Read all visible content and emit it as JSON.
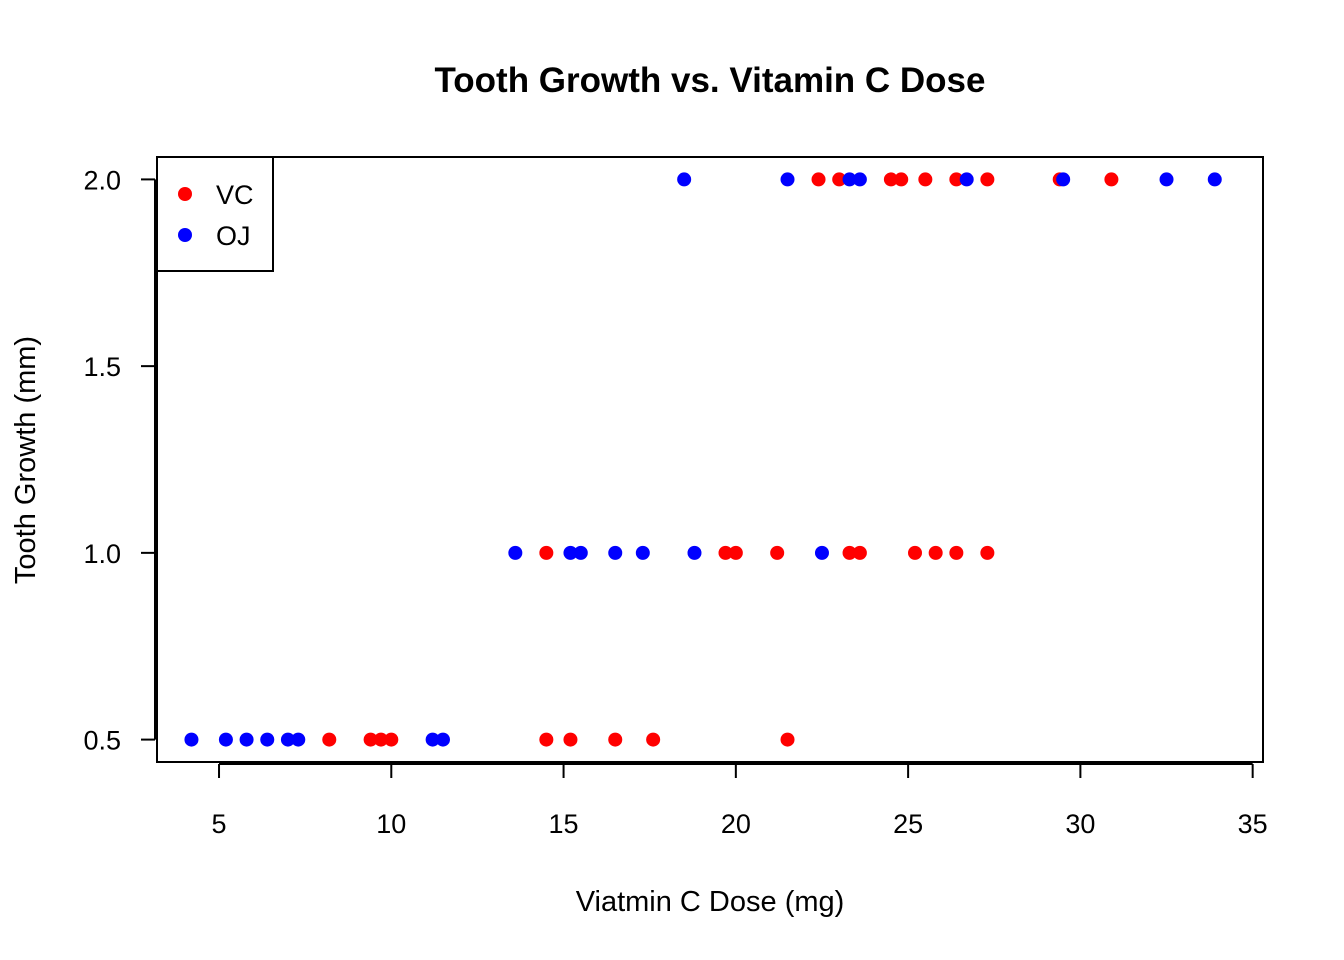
{
  "chart_data": {
    "type": "scatter",
    "title": "Tooth Growth vs. Vitamin C Dose",
    "xlabel": "Viatmin C Dose (mg)",
    "ylabel": "Tooth Growth (mm)",
    "xlim": [
      3.2,
      35.3
    ],
    "ylim": [
      0.44,
      2.06
    ],
    "xticks": [
      5,
      10,
      15,
      20,
      25,
      30,
      35
    ],
    "yticks": [
      0.5,
      1.0,
      1.5,
      2.0
    ],
    "ytick_labels": [
      "0.5",
      "1.0",
      "1.5",
      "2.0"
    ],
    "grid": false,
    "legend_position": "top-left",
    "series": [
      {
        "name": "VC",
        "color": "#ff0000",
        "points": [
          [
            8.2,
            0.5
          ],
          [
            9.4,
            0.5
          ],
          [
            9.7,
            0.5
          ],
          [
            10.0,
            0.5
          ],
          [
            14.5,
            0.5
          ],
          [
            15.2,
            0.5
          ],
          [
            16.5,
            0.5
          ],
          [
            17.6,
            0.5
          ],
          [
            21.5,
            0.5
          ],
          [
            14.5,
            1.0
          ],
          [
            19.7,
            1.0
          ],
          [
            20.0,
            1.0
          ],
          [
            21.2,
            1.0
          ],
          [
            23.3,
            1.0
          ],
          [
            23.6,
            1.0
          ],
          [
            25.2,
            1.0
          ],
          [
            25.8,
            1.0
          ],
          [
            26.4,
            1.0
          ],
          [
            27.3,
            1.0
          ],
          [
            22.4,
            2.0
          ],
          [
            23.0,
            2.0
          ],
          [
            24.5,
            2.0
          ],
          [
            24.8,
            2.0
          ],
          [
            25.5,
            2.0
          ],
          [
            26.4,
            2.0
          ],
          [
            27.3,
            2.0
          ],
          [
            29.4,
            2.0
          ],
          [
            30.9,
            2.0
          ]
        ]
      },
      {
        "name": "OJ",
        "color": "#0000ff",
        "points": [
          [
            4.2,
            0.5
          ],
          [
            5.2,
            0.5
          ],
          [
            5.8,
            0.5
          ],
          [
            6.4,
            0.5
          ],
          [
            7.0,
            0.5
          ],
          [
            7.3,
            0.5
          ],
          [
            11.2,
            0.5
          ],
          [
            11.5,
            0.5
          ],
          [
            13.6,
            1.0
          ],
          [
            15.2,
            1.0
          ],
          [
            15.5,
            1.0
          ],
          [
            16.5,
            1.0
          ],
          [
            17.3,
            1.0
          ],
          [
            18.8,
            1.0
          ],
          [
            22.5,
            1.0
          ],
          [
            18.5,
            2.0
          ],
          [
            21.5,
            2.0
          ],
          [
            23.3,
            2.0
          ],
          [
            23.6,
            2.0
          ],
          [
            26.7,
            2.0
          ],
          [
            29.5,
            2.0
          ],
          [
            32.5,
            2.0
          ],
          [
            33.9,
            2.0
          ]
        ]
      }
    ]
  }
}
